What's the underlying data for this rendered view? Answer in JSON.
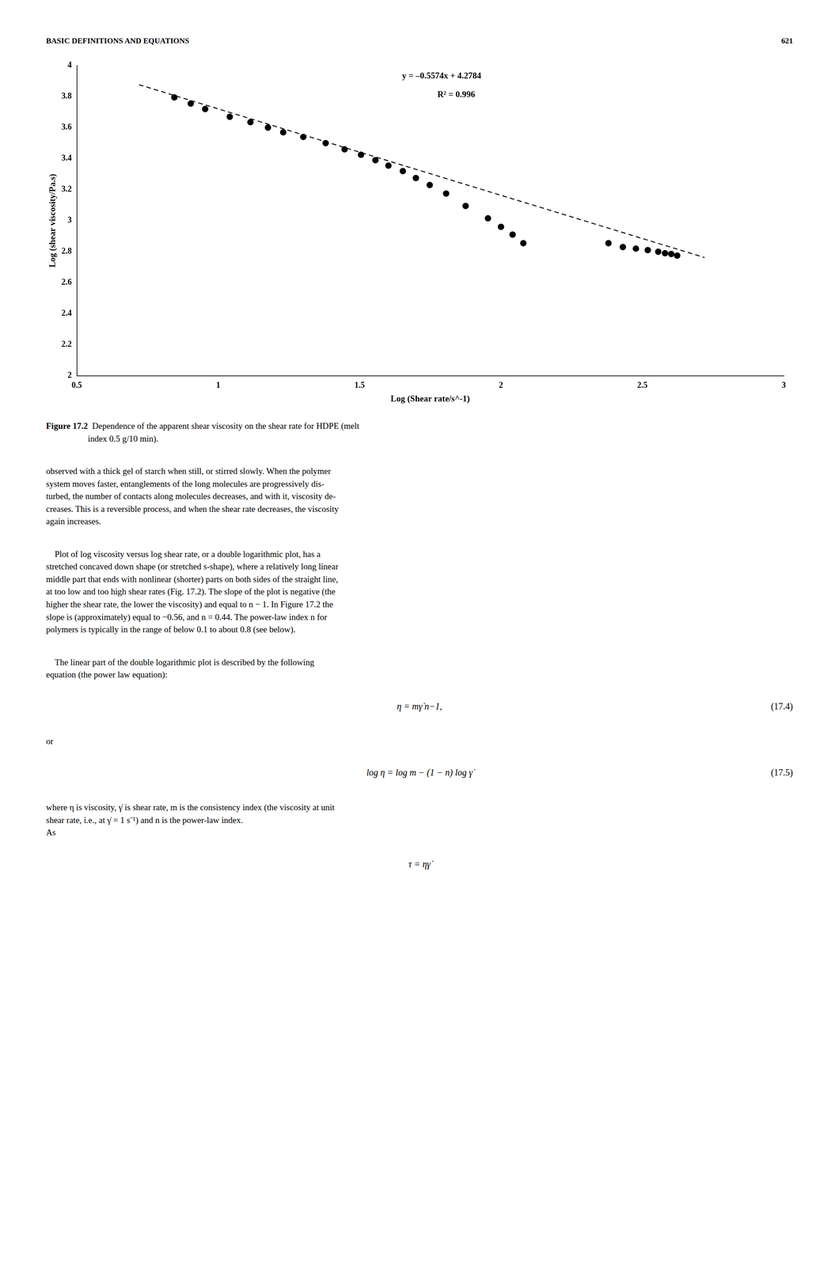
{
  "page": {
    "header": [
      "BASIC DEFINITIONS AND EQUATIONS",
      "621"
    ],
    "blocks": [
      {
        "kind": "caption",
        "label": "Figure 17.2",
        "text": "  Dependence of the apparent shear viscosity on the shear rate for HDPE (melt\nindex 0.5 g/10 min)."
      },
      {
        "kind": "paragraph",
        "text": "observed with a thick gel of starch when still, or stirred slowly. When the polymer\nsystem moves faster, entanglements of the long molecules are progressively dis-\nturbed, the number of contacts along molecules decreases, and with it, viscosity de-\ncreases. This is a reversible process, and when the shear rate decreases, the viscosity\nagain increases."
      },
      {
        "kind": "paragraph",
        "text": "    Plot of log viscosity versus log shear rate, or a double logarithmic plot, has a\nstretched concaved down shape (or stretched s-shape), where a relatively long linear\nmiddle part that ends with nonlinear (shorter) parts on both sides of the straight line,\nat too low and too high shear rates (Fig. 17.2). The slope of the plot is negative (the\nhigher the shear rate, the lower the viscosity) and equal to n − 1. In Figure 17.2 the\nslope is (approximately) equal to −0.56, and n = 0.44. The power-law index n for\npolymers is typically in the range of below 0.1 to about 0.8 (see below)."
      },
      {
        "kind": "paragraph",
        "text": "    The linear part of the double logarithmic plot is described by the following\nequation (the power law equation):"
      },
      {
        "kind": "equation",
        "text": "η = mγ̇ n−1,",
        "label": "(17.4)"
      },
      {
        "kind": "paragraph",
        "text": "or"
      },
      {
        "kind": "equation",
        "text": "log η = log m − (1 − n) log γ̇",
        "label": "(17.5)"
      },
      {
        "kind": "paragraph",
        "text": "where η is viscosity, γ̇ is shear rate, m is the consistency index (the viscosity at unit\nshear rate, i.e., at γ̇ = 1 s⁻¹) and n is the power-law index.\nAs"
      },
      {
        "kind": "equation",
        "text": "τ = ηγ̇"
      }
    ]
  },
  "chart_data": {
    "type": "scatter",
    "xlabel": "Log (Shear rate/s^-1)",
    "ylabel": "Log (shear viscosity/Pa.s)",
    "xlim": [
      0.5,
      3.0
    ],
    "ylim": [
      2.0,
      4.0
    ],
    "xticks": [
      0.5,
      1,
      1.5,
      2,
      2.5,
      3
    ],
    "yticks": [
      2,
      2.2,
      2.4,
      2.6,
      2.8,
      3,
      3.2,
      3.4,
      3.6,
      3.8,
      4
    ],
    "grid": false,
    "annotations": [
      "y = –0.5574x + 4.2784",
      "R² = 0.996"
    ],
    "series": [
      {
        "type": "scatter",
        "color": "#000000",
        "marker": "circle",
        "x": [
          0.845,
          0.903,
          0.954,
          1.041,
          1.114,
          1.176,
          1.23,
          1.301,
          1.38,
          1.447,
          1.505,
          1.556,
          1.602,
          1.653,
          1.699,
          1.748,
          1.806,
          1.875,
          1.954,
          2.0,
          2.041,
          2.079,
          2.38,
          2.431,
          2.477,
          2.519,
          2.556,
          2.58,
          2.602,
          2.623
        ],
        "values": [
          3.795,
          3.755,
          3.72,
          3.67,
          3.635,
          3.6,
          3.57,
          3.54,
          3.5,
          3.46,
          3.425,
          3.39,
          3.355,
          3.32,
          3.275,
          3.23,
          3.175,
          3.095,
          3.015,
          2.96,
          2.91,
          2.855,
          2.855,
          2.83,
          2.82,
          2.81,
          2.8,
          2.79,
          2.785,
          2.775
        ]
      },
      {
        "type": "line",
        "color": "#000000",
        "line_style": "dashed",
        "x": [
          0.72,
          2.72
        ],
        "values": [
          3.877072,
          2.762272
        ]
      }
    ]
  }
}
